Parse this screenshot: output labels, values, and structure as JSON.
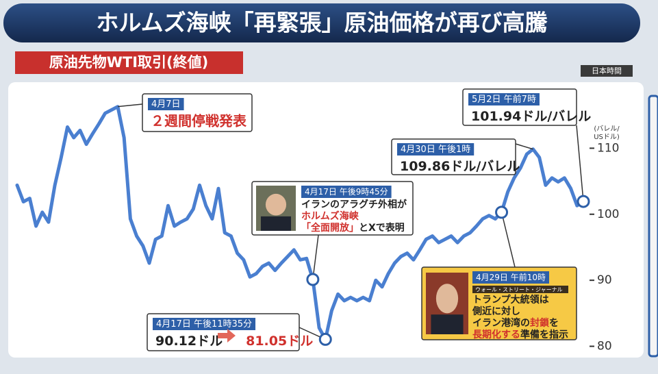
{
  "chart_data": {
    "type": "line",
    "title": "ホルムズ海峡「再緊張」原油価格が再び高騰",
    "subtitle": "原油先物WTI取引(終値)",
    "time_note": "日本時間",
    "yaxis_label": [
      "(バレル/",
      "USドル)"
    ],
    "ylim": [
      78.5,
      120
    ],
    "yticks": [
      80,
      90,
      100,
      110
    ],
    "series": [
      {
        "color": "#4a7fd0",
        "values": [
          104.4,
          101.9,
          102.4,
          98.2,
          100.3,
          98.8,
          104.4,
          108.6,
          113.2,
          111.6,
          112.7,
          110.6,
          112.2,
          113.7,
          115.3,
          115.8,
          116.3,
          111.6,
          99.3,
          96.7,
          95.2,
          92.6,
          96.2,
          96.7,
          101.3,
          98.2,
          98.8,
          99.3,
          100.8,
          104.4,
          101.3,
          99.3,
          103.9,
          97.2,
          96.7,
          94.1,
          93.1,
          90.5,
          91.0,
          92.1,
          92.6,
          91.5,
          92.6,
          93.6,
          94.6,
          93.1,
          93.3,
          90.12,
          82.8,
          81.05,
          85.4,
          87.9,
          86.9,
          87.4,
          86.9,
          87.4,
          86.9,
          90.0,
          89.0,
          91.0,
          92.6,
          93.6,
          94.1,
          93.1,
          94.6,
          96.2,
          96.7,
          95.7,
          96.2,
          96.7,
          95.7,
          96.7,
          97.2,
          98.2,
          99.3,
          99.8,
          99.3,
          100.3,
          103.4,
          105.5,
          107.0,
          109.1,
          109.86,
          108.6,
          104.4,
          105.5,
          104.9,
          105.5,
          103.9,
          101.3,
          101.94
        ]
      }
    ],
    "annotations": [
      {
        "header": "4月7日",
        "lines": [
          [
            {
              "text": "２週間停戦発表",
              "color": "#d0312d"
            }
          ]
        ]
      },
      {
        "header": "4月30日 午後1時",
        "lines": [
          [
            "109.86ドル/バレル"
          ]
        ]
      },
      {
        "header": "5月2日 午前7時",
        "lines": [
          [
            "101.94ドル/バレル"
          ]
        ]
      },
      {
        "header": "4月17日 午後9時45分",
        "lines": [
          [
            "イランのアラグチ外相が"
          ],
          [
            {
              "text": "ホルムズ海峡",
              "color": "#d0312d"
            }
          ],
          [
            {
              "text": "「全面開放」",
              "color": "#d0312d"
            },
            "とXで表明"
          ]
        ]
      },
      {
        "header": "4月17日 午後11時35分",
        "lines": [
          [
            "90.12ドル",
            {
              "text": "81.05ドル",
              "color": "#d0312d"
            }
          ]
        ]
      },
      {
        "header": "4月29日 午前10時",
        "source": "ウォール・ストリート・ジャーナル",
        "lines": [
          [
            "トランプ大統領は"
          ],
          [
            "側近に対し"
          ],
          [
            "イラン港湾の",
            {
              "text": "封鎖",
              "color": "#d0312d"
            },
            "を"
          ],
          [
            {
              "text": "長期化する",
              "color": "#d0312d"
            },
            "準備を指示"
          ]
        ]
      }
    ]
  }
}
